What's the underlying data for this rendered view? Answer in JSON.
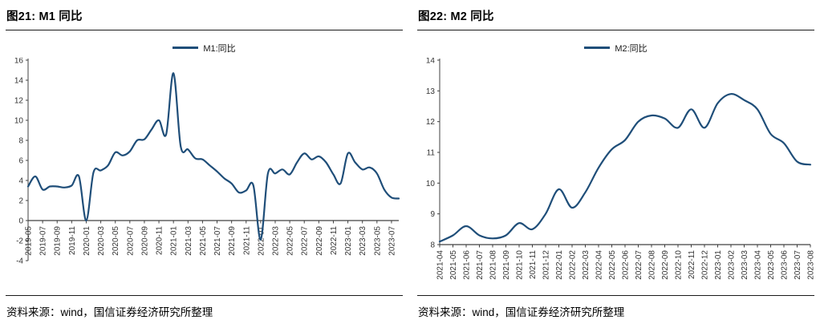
{
  "accent_color": "#1F4E79",
  "panels": [
    {
      "title": "图21: M1 同比",
      "source": "资料来源：wind，国信证券经济研究所整理"
    },
    {
      "title": "图22: M2 同比",
      "source": "资料来源：wind，国信证券经济研究所整理"
    }
  ],
  "chart_data": [
    {
      "type": "line",
      "title": "图21: M1 同比",
      "xlabel": "",
      "ylabel": "",
      "ylim": [
        -4,
        16
      ],
      "ytick_step": 2,
      "xtick_every": 2,
      "x_axis_at": 0,
      "grid": false,
      "legend_position": "top-center",
      "axis_color": "#404040",
      "x": [
        "2019-05",
        "2019-06",
        "2019-07",
        "2019-08",
        "2019-09",
        "2019-10",
        "2019-11",
        "2019-12",
        "2020-01",
        "2020-02",
        "2020-03",
        "2020-04",
        "2020-05",
        "2020-06",
        "2020-07",
        "2020-08",
        "2020-09",
        "2020-10",
        "2020-11",
        "2020-12",
        "2021-01",
        "2021-02",
        "2021-03",
        "2021-04",
        "2021-05",
        "2021-06",
        "2021-07",
        "2021-08",
        "2021-09",
        "2021-10",
        "2021-11",
        "2021-12",
        "2022-01",
        "2022-02",
        "2022-03",
        "2022-04",
        "2022-05",
        "2022-06",
        "2022-07",
        "2022-08",
        "2022-09",
        "2022-10",
        "2022-11",
        "2022-12",
        "2023-01",
        "2023-02",
        "2023-03",
        "2023-04",
        "2023-05",
        "2023-06",
        "2023-07",
        "2023-08"
      ],
      "series": [
        {
          "name": "M1:同比",
          "color": "#1F4E79",
          "values": [
            3.4,
            4.4,
            3.1,
            3.4,
            3.4,
            3.3,
            3.5,
            4.4,
            0.0,
            4.8,
            5.0,
            5.5,
            6.8,
            6.5,
            6.9,
            8.0,
            8.1,
            9.1,
            10.0,
            8.6,
            14.7,
            7.4,
            7.1,
            6.2,
            6.1,
            5.5,
            4.9,
            4.2,
            3.7,
            2.8,
            3.0,
            3.5,
            -1.9,
            4.7,
            4.7,
            5.1,
            4.6,
            5.8,
            6.7,
            6.1,
            6.4,
            5.8,
            4.6,
            3.7,
            6.7,
            5.8,
            5.1,
            5.3,
            4.7,
            3.1,
            2.3,
            2.2
          ]
        }
      ]
    },
    {
      "type": "line",
      "title": "图22: M2 同比",
      "xlabel": "",
      "ylabel": "",
      "ylim": [
        8,
        14
      ],
      "ytick_step": 1,
      "xtick_every": 1,
      "x_axis_at": 8,
      "grid": false,
      "legend_position": "top-center",
      "axis_color": "#404040",
      "x": [
        "2021-04",
        "2021-05",
        "2021-06",
        "2021-07",
        "2021-08",
        "2021-09",
        "2021-10",
        "2021-11",
        "2021-12",
        "2022-01",
        "2022-02",
        "2022-03",
        "2022-04",
        "2022-05",
        "2022-06",
        "2022-07",
        "2022-08",
        "2022-09",
        "2022-10",
        "2022-11",
        "2022-12",
        "2023-01",
        "2023-02",
        "2023-03",
        "2023-04",
        "2023-05",
        "2023-06",
        "2023-07",
        "2023-08"
      ],
      "series": [
        {
          "name": "M2:同比",
          "color": "#1F4E79",
          "values": [
            8.1,
            8.3,
            8.6,
            8.3,
            8.2,
            8.3,
            8.7,
            8.5,
            9.0,
            9.8,
            9.2,
            9.7,
            10.5,
            11.1,
            11.4,
            12.0,
            12.2,
            12.1,
            11.8,
            12.4,
            11.8,
            12.6,
            12.9,
            12.7,
            12.4,
            11.6,
            11.3,
            10.7,
            10.6
          ]
        }
      ]
    }
  ]
}
